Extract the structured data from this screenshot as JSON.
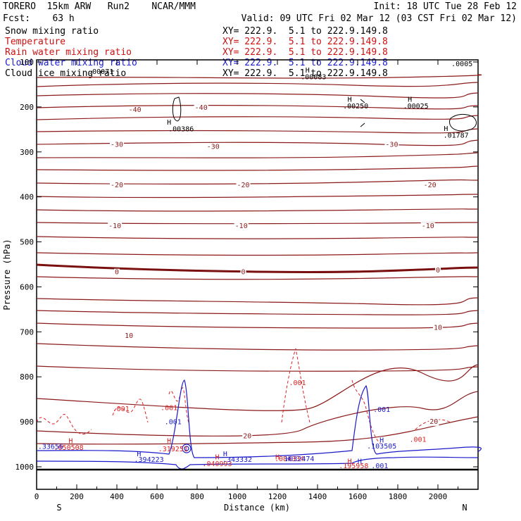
{
  "header": {
    "model": "TORERO  15km ARW   Run2    NCAR/MMM",
    "init": "Init: 18 UTC Tue 28 Feb 12",
    "fcst": "Fcst:    63 h",
    "valid": "Valid: 09 UTC Fri 02 Mar 12 (03 CST Fri 02 Mar 12)",
    "fields": [
      {
        "label": "Snow mixing ratio",
        "xy": "XY= 222.9.  5.1 to 222.9.149.8",
        "color": "#000000"
      },
      {
        "label": "Temperature",
        "xy": "XY= 222.9.  5.1 to 222.9.149.8",
        "color": "#cc1111"
      },
      {
        "label": "Rain water mixing ratio",
        "xy": "XY= 222.9.  5.1 to 222.9.149.8",
        "color": "#cc1111"
      },
      {
        "label": "Cloud water mixing ratio",
        "xy": "XY= 222.9.  5.1 to 222.9.149.8",
        "color": "#1a1acc"
      },
      {
        "label": "Cloud ice mixing ratio",
        "xy": "XY= 222.9.  5.1 to 222.9.149.8",
        "color": "#000000"
      }
    ]
  },
  "chart_data": {
    "type": "contour cross-section",
    "xlabel": "Distance (km)",
    "ylabel": "Pressure (hPa)",
    "xlim": [
      0,
      2200
    ],
    "ylim": [
      1050,
      100
    ],
    "x_ticks": [
      0,
      200,
      400,
      600,
      800,
      1000,
      1200,
      1400,
      1600,
      1800,
      2000
    ],
    "y_ticks": [
      100,
      200,
      300,
      400,
      500,
      600,
      700,
      800,
      900,
      1000
    ],
    "y_tick_labels": [
      "100",
      "200",
      "300",
      "400",
      "500",
      "600",
      "700",
      "800",
      "900",
      "1000"
    ],
    "x_end_labels": {
      "left": "S",
      "right": "N"
    },
    "temperature_isotherms": [
      {
        "value": 10,
        "label": "10",
        "label_positions": [
          [
            460,
            707
          ],
          [
            2000,
            689
          ]
        ]
      },
      {
        "value": 0,
        "label": "0",
        "label_positions": [
          [
            400,
            566
          ],
          [
            1030,
            566
          ],
          [
            2000,
            562
          ]
        ]
      },
      {
        "value": -10,
        "label": "-10",
        "label_positions": [
          [
            390,
            463
          ],
          [
            1020,
            463
          ],
          [
            1950,
            463
          ]
        ]
      },
      {
        "value": -20,
        "label": "-20",
        "label_positions": [
          [
            400,
            372
          ],
          [
            1030,
            372
          ],
          [
            1960,
            372
          ]
        ]
      },
      {
        "value": -30,
        "label": "-30",
        "label_positions": [
          [
            400,
            282
          ],
          [
            880,
            287
          ],
          [
            1770,
            282
          ]
        ]
      },
      {
        "value": -40,
        "label": "-40",
        "label_positions": [
          [
            490,
            205
          ],
          [
            820,
            200
          ]
        ]
      },
      {
        "value": 20,
        "label": "20",
        "label_positions": [
          [
            1050,
            930
          ],
          [
            1980,
            898
          ]
        ]
      }
    ],
    "temperature_lower_labels": [
      {
        "label": "20",
        "x": 320,
        "p": 946
      },
      {
        "label": "20",
        "x": 1050,
        "p": 931
      },
      {
        "label": "20",
        "x": 1980,
        "p": 898
      }
    ],
    "rain_labels": [
      {
        "label": ".001",
        "x": 420,
        "p": 870
      },
      {
        "label": ".001",
        "x": 660,
        "p": 868
      },
      {
        "label": ".001",
        "x": 1300,
        "p": 812
      },
      {
        "label": ".001",
        "x": 1900,
        "p": 938
      },
      {
        "label": "H",
        "x": 170,
        "p": 941
      },
      {
        "label": ".050508",
        "x": 160,
        "p": 956
      },
      {
        "label": "H",
        "x": 660,
        "p": 941
      },
      {
        "label": ".319251",
        "x": 680,
        "p": 959
      },
      {
        "label": "H",
        "x": 900,
        "p": 977
      },
      {
        "label": ".040993",
        "x": 900,
        "p": 992
      },
      {
        "label": "H",
        "x": 1200,
        "p": 977
      },
      {
        "label": ".084334",
        "x": 1260,
        "p": 981
      },
      {
        "label": "H",
        "x": 1560,
        "p": 987
      },
      {
        "label": ".195958",
        "x": 1580,
        "p": 997
      }
    ],
    "cloud_water_labels": [
      {
        "label": ".33656",
        "x": 70,
        "p": 954
      },
      {
        "label": ".001",
        "x": 680,
        "p": 899
      },
      {
        "label": "H",
        "x": 510,
        "p": 970
      },
      {
        "label": ".394223",
        "x": 560,
        "p": 983
      },
      {
        "label": "H",
        "x": 940,
        "p": 970
      },
      {
        "label": ".343332",
        "x": 1000,
        "p": 983
      },
      {
        "label": "H",
        "x": 1250,
        "p": 981
      },
      {
        "label": ".032474",
        "x": 1310,
        "p": 981
      },
      {
        "label": "H",
        "x": 1610,
        "p": 987
      },
      {
        "label": ".103505",
        "x": 1720,
        "p": 953
      },
      {
        "label": "H",
        "x": 1720,
        "p": 940
      },
      {
        "label": ".001",
        "x": 1720,
        "p": 872
      },
      {
        "label": ".001",
        "x": 1710,
        "p": 997
      }
    ],
    "ice_labels": [
      {
        "label": ".00071",
        "x": 320,
        "p": 120
      },
      {
        "label": "H",
        "x": 1350,
        "p": 117
      },
      {
        "label": ".00083",
        "x": 1380,
        "p": 132
      },
      {
        "label": "H",
        "x": 1560,
        "p": 182
      },
      {
        "label": ".00250",
        "x": 1590,
        "p": 197
      },
      {
        "label": "H",
        "x": 1860,
        "p": 182
      },
      {
        "label": ".00025",
        "x": 1890,
        "p": 197
      },
      {
        "label": "H",
        "x": 660,
        "p": 233
      },
      {
        "label": ".00386",
        "x": 720,
        "p": 248
      },
      {
        "label": "H",
        "x": 2040,
        "p": 247
      },
      {
        "label": ".01787",
        "x": 2090,
        "p": 262
      },
      {
        "label": ".0005",
        "x": 2120,
        "p": 103
      }
    ]
  }
}
